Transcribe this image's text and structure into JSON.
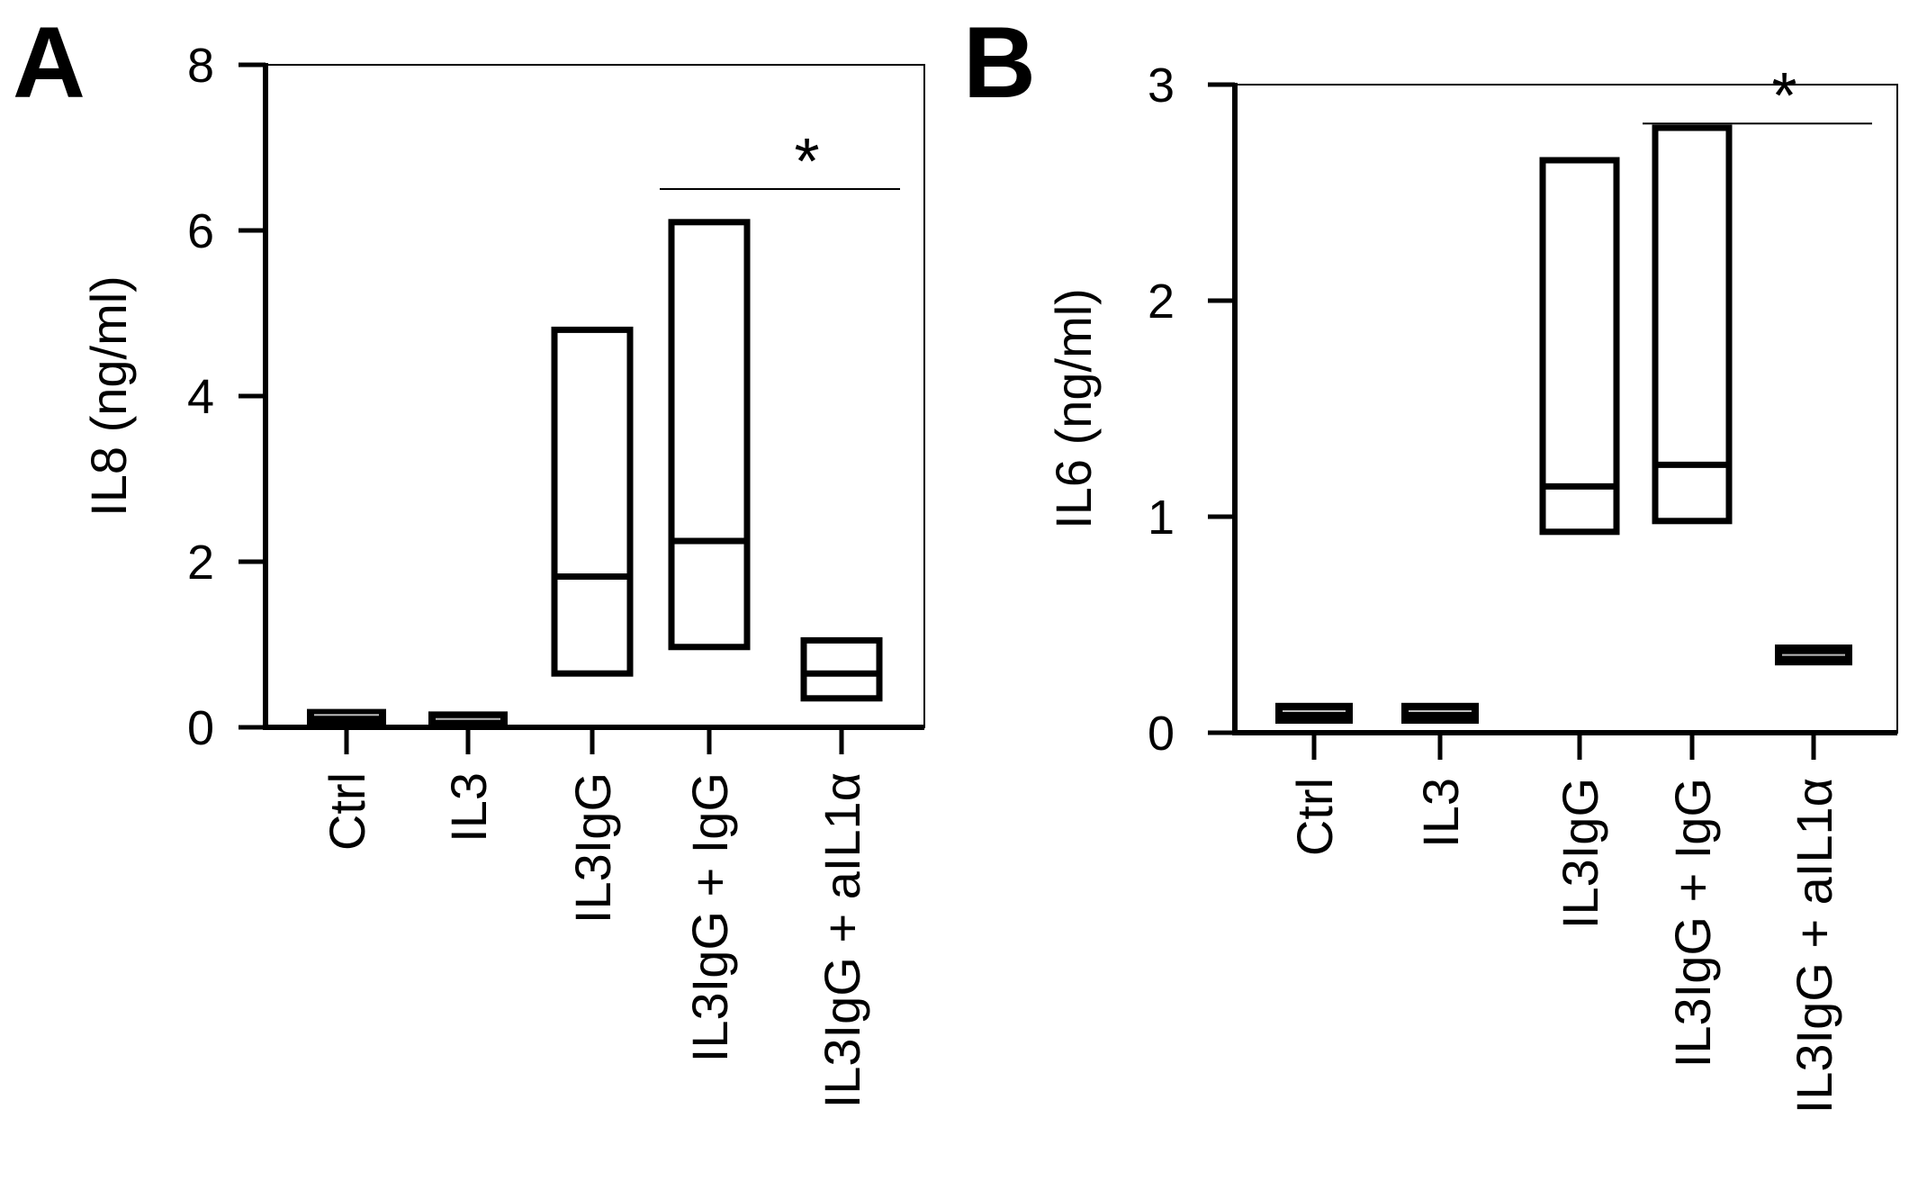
{
  "chart_data": [
    {
      "type": "floating_bar",
      "panel_label": "A",
      "title": "",
      "xlabel": "",
      "ylabel": "IL8 (ng/ml)",
      "ylim": [
        0,
        8
      ],
      "yticks": [
        "0",
        "2",
        "4",
        "6",
        "8"
      ],
      "grid": false,
      "categories": [
        "Ctrl",
        "IL3",
        "IL3IgG",
        "IL3IgG + IgG",
        "IL3IgG + aIL1α"
      ],
      "boxes": [
        {
          "min": 0.05,
          "median": 0.15,
          "max": 0.2
        },
        {
          "min": 0.0,
          "median": 0.1,
          "max": 0.17
        },
        {
          "min": 0.65,
          "median": 1.82,
          "max": 4.8
        },
        {
          "min": 0.97,
          "median": 2.25,
          "max": 6.1
        },
        {
          "min": 0.35,
          "median": 0.65,
          "max": 1.05
        }
      ],
      "significance": {
        "from": 3,
        "to": 4,
        "y": 6.5,
        "label": "*"
      }
    },
    {
      "type": "floating_bar",
      "panel_label": "B",
      "title": "",
      "xlabel": "",
      "ylabel": "IL6 (ng/ml)",
      "ylim": [
        0,
        3
      ],
      "yticks": [
        "0",
        "1",
        "2",
        "3"
      ],
      "grid": false,
      "categories": [
        "Ctrl",
        "IL3",
        "IL3IgG",
        "IL3IgG + IgG",
        "IL3IgG + aIL1α"
      ],
      "boxes": [
        {
          "min": 0.05,
          "median": 0.1,
          "max": 0.13
        },
        {
          "min": 0.05,
          "median": 0.1,
          "max": 0.13
        },
        {
          "min": 0.93,
          "median": 1.14,
          "max": 2.65
        },
        {
          "min": 0.98,
          "median": 1.24,
          "max": 2.8
        },
        {
          "min": 0.32,
          "median": 0.36,
          "max": 0.4
        }
      ],
      "significance": {
        "from": 3,
        "to": 4,
        "y": 2.82,
        "label": "*"
      }
    }
  ]
}
